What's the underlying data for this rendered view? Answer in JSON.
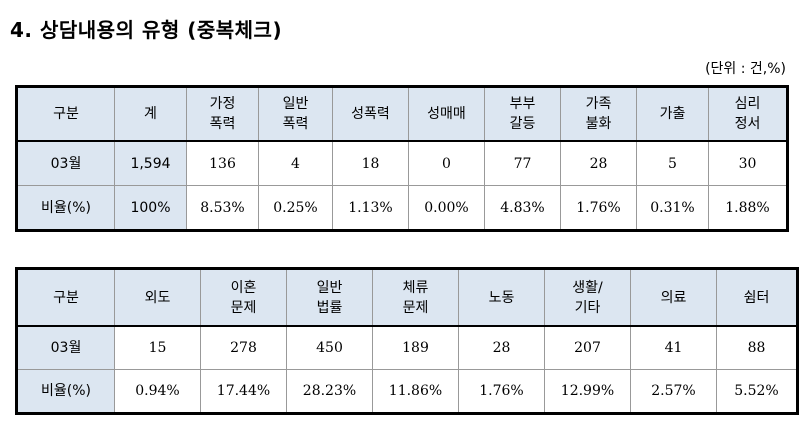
{
  "title": "4. 상담내용의 유형 (중복체크)",
  "unit": "(단위 : 건,%)",
  "table1": {
    "headers": [
      "구분",
      "계",
      "가정\n폭력",
      "일반\n폭력",
      "성폭력",
      "성매매",
      "부부\n갈등",
      "가족\n불화",
      "가출",
      "심리\n정서"
    ],
    "row_count": {
      "label": "03월",
      "values": [
        "1,594",
        "136",
        "4",
        "18",
        "0",
        "77",
        "28",
        "5",
        "30"
      ]
    },
    "row_ratio": {
      "label": "비율(%)",
      "values": [
        "100%",
        "8.53%",
        "0.25%",
        "1.13%",
        "0.00%",
        "4.83%",
        "1.76%",
        "0.31%",
        "1.88%"
      ]
    }
  },
  "table2": {
    "headers": [
      "구분",
      "외도",
      "이혼\n문제",
      "일반\n법률",
      "체류\n문제",
      "노동",
      "생활/\n기타",
      "의료",
      "쉼터"
    ],
    "row_count": {
      "label": "03월",
      "values": [
        "15",
        "278",
        "450",
        "189",
        "28",
        "207",
        "41",
        "88"
      ]
    },
    "row_ratio": {
      "label": "비율(%)",
      "values": [
        "0.94%",
        "17.44%",
        "28.23%",
        "11.86%",
        "1.76%",
        "12.99%",
        "2.57%",
        "5.52%"
      ]
    }
  },
  "colors": {
    "header_bg": "#dce6f1",
    "border": "#000000"
  }
}
